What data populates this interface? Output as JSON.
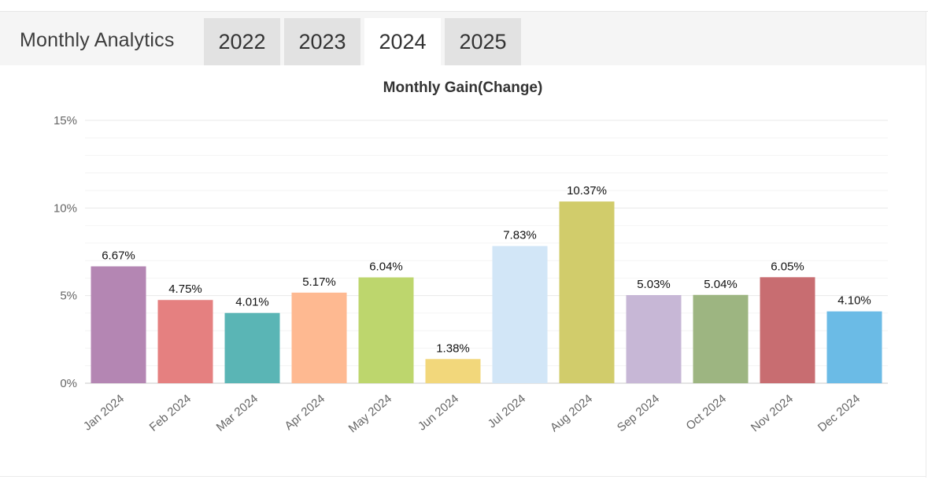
{
  "app": {
    "title": "Monthly Analytics"
  },
  "tabs": [
    {
      "label": "2022",
      "active": false
    },
    {
      "label": "2023",
      "active": false
    },
    {
      "label": "2024",
      "active": true
    },
    {
      "label": "2025",
      "active": false
    }
  ],
  "chart_data": {
    "type": "bar",
    "title": "Monthly Gain(Change)",
    "xlabel": "",
    "ylabel": "",
    "ylim": [
      0,
      15
    ],
    "yticks": [
      0,
      5,
      10,
      15
    ],
    "ytick_labels": [
      "0%",
      "5%",
      "10%",
      "15%"
    ],
    "grid": true,
    "categories": [
      "Jan 2024",
      "Feb 2024",
      "Mar 2024",
      "Apr 2024",
      "May 2024",
      "Jun 2024",
      "Jul 2024",
      "Aug 2024",
      "Sep 2024",
      "Oct 2024",
      "Nov 2024",
      "Dec 2024"
    ],
    "values": [
      6.67,
      4.75,
      4.01,
      5.17,
      6.04,
      1.38,
      7.83,
      10.37,
      5.03,
      5.04,
      6.05,
      4.1
    ],
    "value_labels": [
      "6.67%",
      "4.75%",
      "4.01%",
      "5.17%",
      "6.04%",
      "1.38%",
      "7.83%",
      "10.37%",
      "5.03%",
      "5.04%",
      "6.05%",
      "4.10%"
    ],
    "colors": [
      "#b486b3",
      "#e58080",
      "#5ab5b5",
      "#feb991",
      "#bdd66d",
      "#f2d77b",
      "#d2e6f7",
      "#d1cc6b",
      "#c7b7d6",
      "#9db581",
      "#c86d71",
      "#6bbbe6"
    ]
  }
}
